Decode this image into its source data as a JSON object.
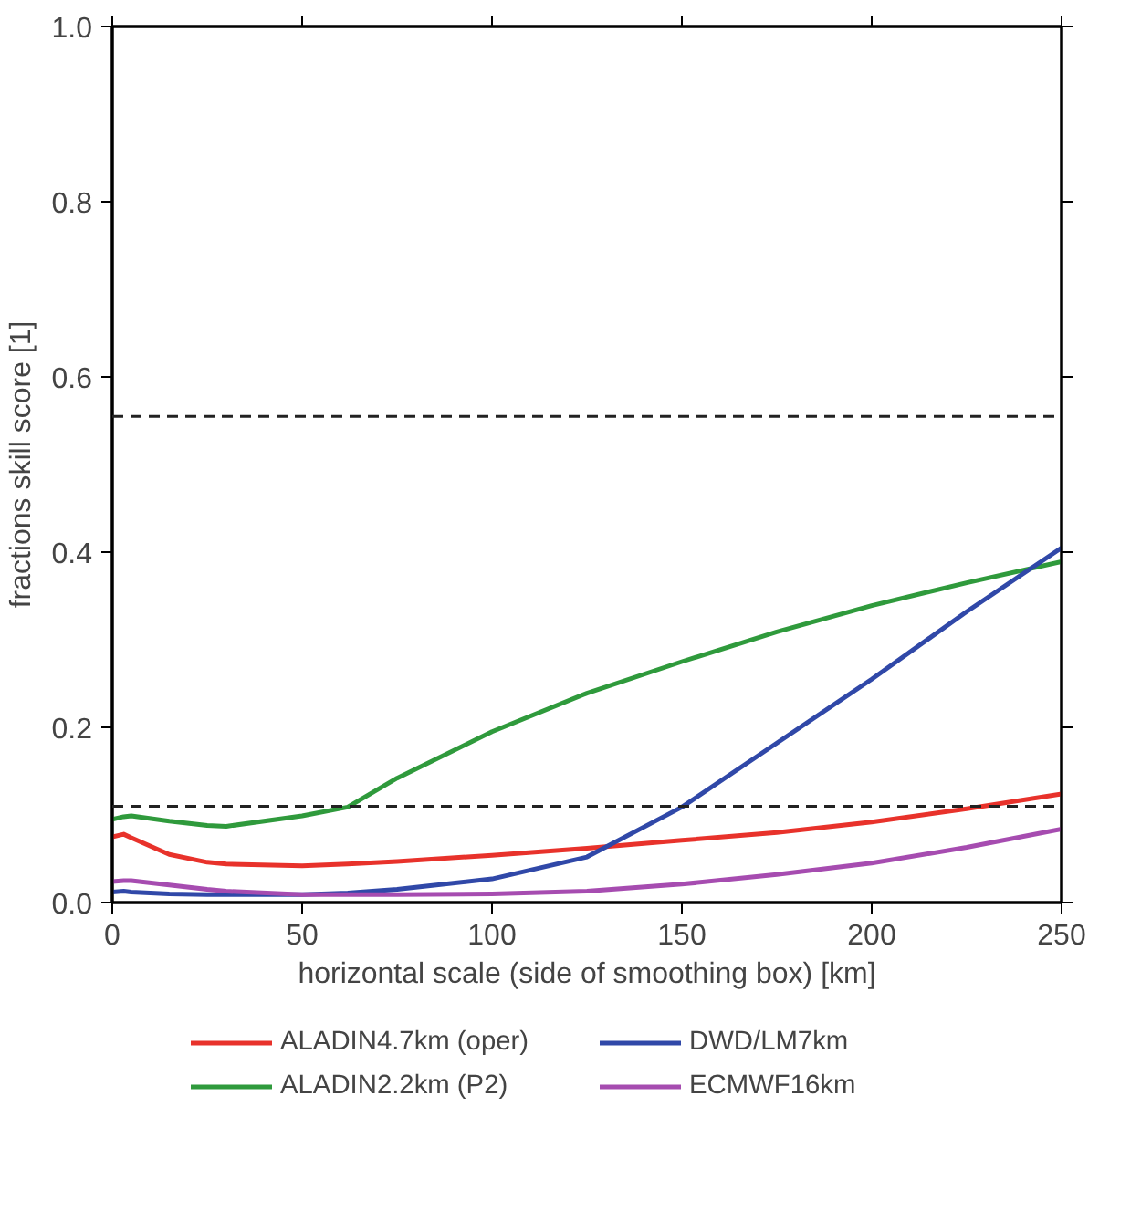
{
  "chart_data": {
    "type": "line",
    "xlabel": "horizontal scale (side of smoothing box) [km]",
    "ylabel": "fractions skill score [1]",
    "x": [
      0,
      3,
      5,
      15,
      25,
      30,
      50,
      62,
      75,
      100,
      125,
      150,
      175,
      200,
      225,
      250
    ],
    "xlim": [
      0,
      250
    ],
    "xticks": [
      0,
      50,
      100,
      150,
      200,
      250
    ],
    "ylim": [
      0,
      1
    ],
    "yticks": [
      {
        "value": 0,
        "label": "0.0"
      },
      {
        "value": 0.2,
        "label": "0.2"
      },
      {
        "value": 0.4,
        "label": "0.4"
      },
      {
        "value": 0.6,
        "label": "0.6"
      },
      {
        "value": 0.8,
        "label": "0.8"
      },
      {
        "value": 1,
        "label": "1.0"
      }
    ],
    "grid": false,
    "legend": "bottom",
    "line_style": "solid",
    "marker": "none",
    "series": [
      {
        "name": "ALADIN4.7km (oper)",
        "color": "#e8322b",
        "values": [
          0.075,
          0.078,
          0.074,
          0.055,
          0.046,
          0.044,
          0.042,
          0.044,
          0.047,
          0.054,
          0.062,
          0.071,
          0.08,
          0.092,
          0.107,
          0.124
        ]
      },
      {
        "name": "ALADIN2.2km (P2)",
        "color": "#2f9a3c",
        "values": [
          0.095,
          0.098,
          0.099,
          0.093,
          0.088,
          0.087,
          0.099,
          0.109,
          0.142,
          0.195,
          0.239,
          0.275,
          0.309,
          0.339,
          0.365,
          0.389
        ]
      },
      {
        "name": "DWD/LM7km",
        "color": "#3048a8",
        "values": [
          0.012,
          0.013,
          0.012,
          0.01,
          0.009,
          0.009,
          0.009,
          0.011,
          0.015,
          0.027,
          0.052,
          0.109,
          0.182,
          0.255,
          0.332,
          0.405
        ]
      },
      {
        "name": "ECMWF16km",
        "color": "#a64cb0",
        "values": [
          0.024,
          0.025,
          0.025,
          0.02,
          0.015,
          0.013,
          0.009,
          0.009,
          0.009,
          0.01,
          0.013,
          0.021,
          0.032,
          0.045,
          0.063,
          0.084
        ]
      }
    ],
    "ref_lines": [
      {
        "axis": "y",
        "value": 0.555,
        "color": "#222222",
        "line_style": "dashed"
      },
      {
        "axis": "y",
        "value": 0.11,
        "color": "#222222",
        "line_style": "dashed"
      }
    ]
  }
}
